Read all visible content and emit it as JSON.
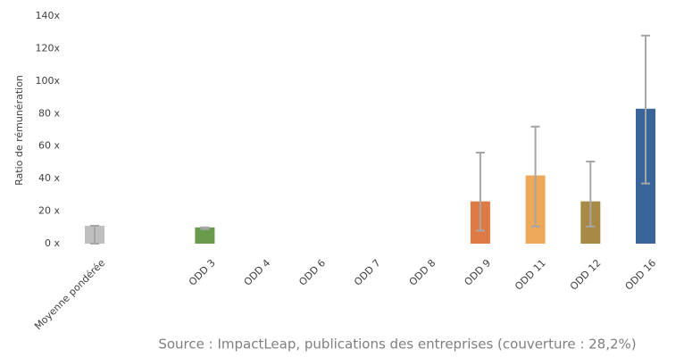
{
  "chart_data": {
    "type": "bar",
    "y_label": "Ratio de rémunération",
    "source": "Source : ImpactLeap, publications des entreprises (couverture : 28,2%)",
    "categories": [
      "Moyenne pondérée",
      null,
      "ODD 3",
      "ODD 4",
      "ODD 6",
      "ODD 7",
      "ODD 8",
      "ODD 9",
      "ODD 11",
      "ODD 12",
      "ODD 16"
    ],
    "values": [
      11,
      null,
      10,
      0,
      0,
      0,
      0,
      26,
      42,
      26,
      83
    ],
    "error_low": [
      0,
      null,
      9,
      null,
      null,
      null,
      null,
      8,
      10.5,
      10.5,
      37
    ],
    "error_high": [
      11,
      null,
      10,
      null,
      null,
      null,
      null,
      56,
      72,
      50.5,
      128
    ],
    "colors": [
      "#bfbfbf",
      null,
      "#6a9a4c",
      "#6a9a4c",
      "#6a9a4c",
      "#6a9a4c",
      "#6a9a4c",
      "#e07a45",
      "#eda85a",
      "#a88a46",
      "#3a659b"
    ],
    "error_color": "#a6a6a6",
    "ylim": [
      0,
      140
    ],
    "yticks": [
      {
        "value": 0,
        "label": "0 x"
      },
      {
        "value": 20,
        "label": "20 x"
      },
      {
        "value": 40,
        "label": "40 x"
      },
      {
        "value": 60,
        "label": "60 x"
      },
      {
        "value": 80,
        "label": "80 x"
      },
      {
        "value": 100,
        "label": "100x"
      },
      {
        "value": 120,
        "label": "120x"
      },
      {
        "value": 140,
        "label": "140x"
      }
    ],
    "grid": false
  }
}
